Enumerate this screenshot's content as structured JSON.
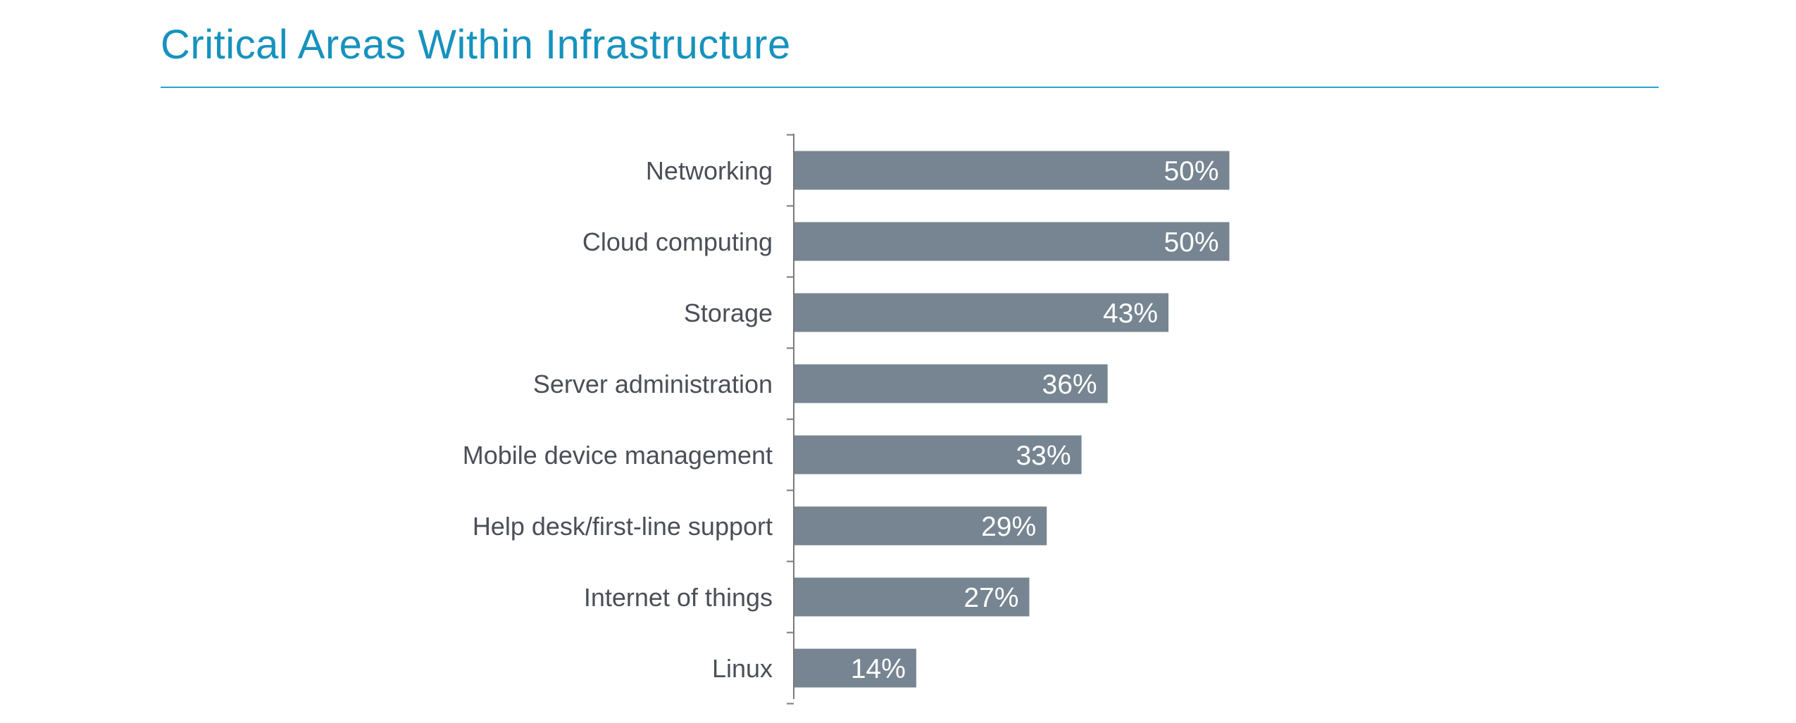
{
  "title": "Critical Areas Within Infrastructure",
  "colors": {
    "title": "#1692bd",
    "rule": "#2aa3cf",
    "bar": "#768591",
    "axis": "#7a7a7a",
    "category_text": "#4a4f57",
    "value_text": "#ffffff"
  },
  "chart_data": {
    "type": "bar",
    "orientation": "horizontal",
    "title": "Critical Areas Within Infrastructure",
    "categories": [
      "Networking",
      "Cloud computing",
      "Storage",
      "Server administration",
      "Mobile device management",
      "Help desk/first-line support",
      "Internet of things",
      "Linux"
    ],
    "values": [
      50,
      50,
      43,
      36,
      33,
      29,
      27,
      14
    ],
    "value_labels": [
      "50%",
      "50%",
      "43%",
      "36%",
      "33%",
      "29%",
      "27%",
      "14%"
    ],
    "unit": "%",
    "xlim": [
      0,
      100
    ],
    "grid": false,
    "legend": "none"
  }
}
